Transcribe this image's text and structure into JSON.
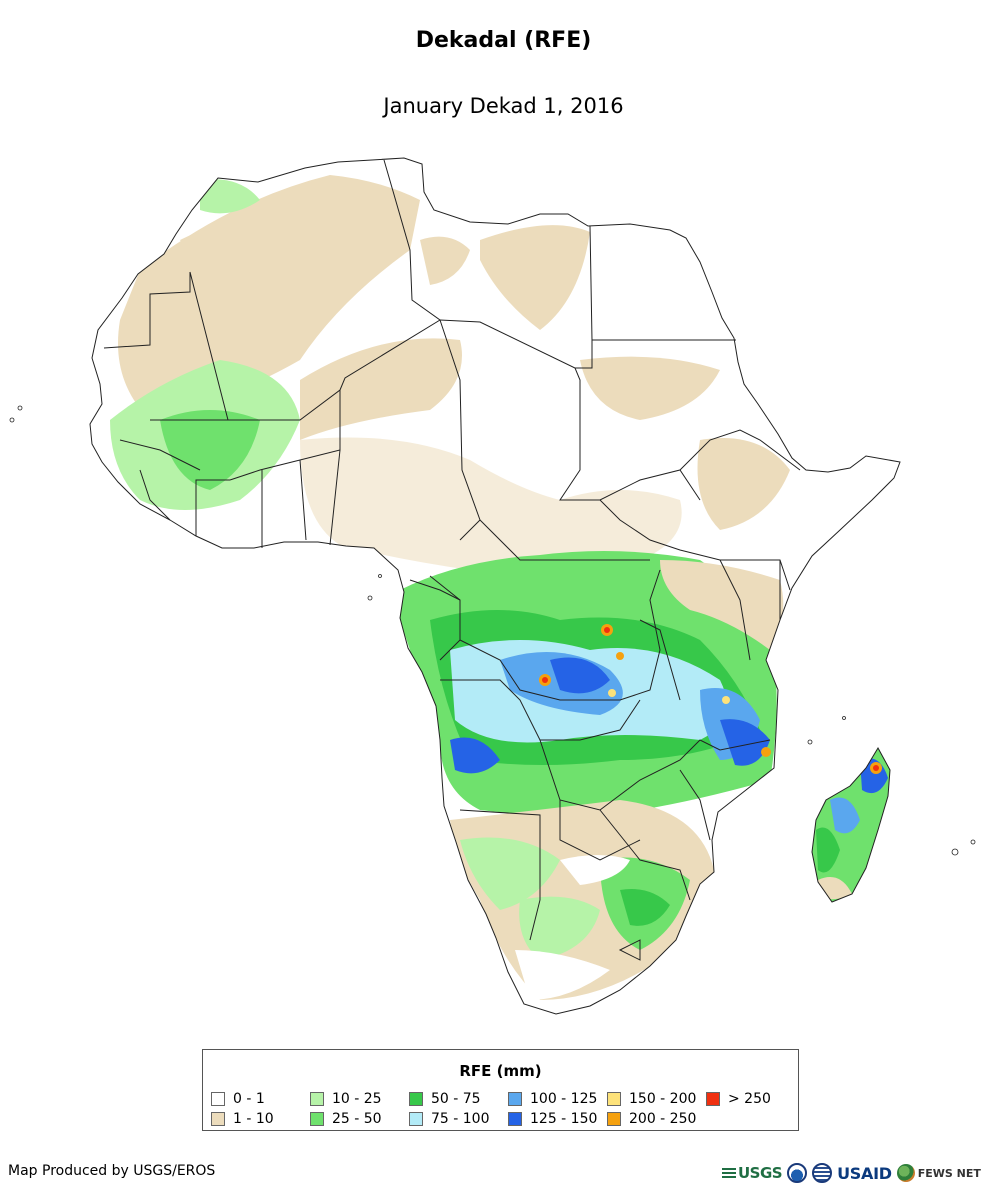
{
  "map": {
    "title": "Dekadal (RFE)",
    "subtitle": "January Dekad 1, 2016",
    "region": "Africa"
  },
  "legend": {
    "title": "RFE (mm)",
    "items": [
      {
        "label": "0 - 1",
        "color": "#ffffff"
      },
      {
        "label": "1 - 10",
        "color": "#ecdcbc"
      },
      {
        "label": "10 - 25",
        "color": "#b6f3a8"
      },
      {
        "label": "25 - 50",
        "color": "#6fe16d"
      },
      {
        "label": "50 - 75",
        "color": "#37c84a"
      },
      {
        "label": "75 - 100",
        "color": "#b3ebf7"
      },
      {
        "label": "100 - 125",
        "color": "#5aa7ee"
      },
      {
        "label": "125 - 150",
        "color": "#2563e6"
      },
      {
        "label": "150 - 200",
        "color": "#fde27a"
      },
      {
        "label": "200 - 250",
        "color": "#f5a10f"
      },
      {
        "label": "> 250",
        "color": "#f03010"
      }
    ]
  },
  "footer": {
    "credit": "Map Produced by USGS/EROS",
    "logos": {
      "usgs": "USGS",
      "usaid": "USAID",
      "fewsnet": "FEWS NET"
    }
  }
}
